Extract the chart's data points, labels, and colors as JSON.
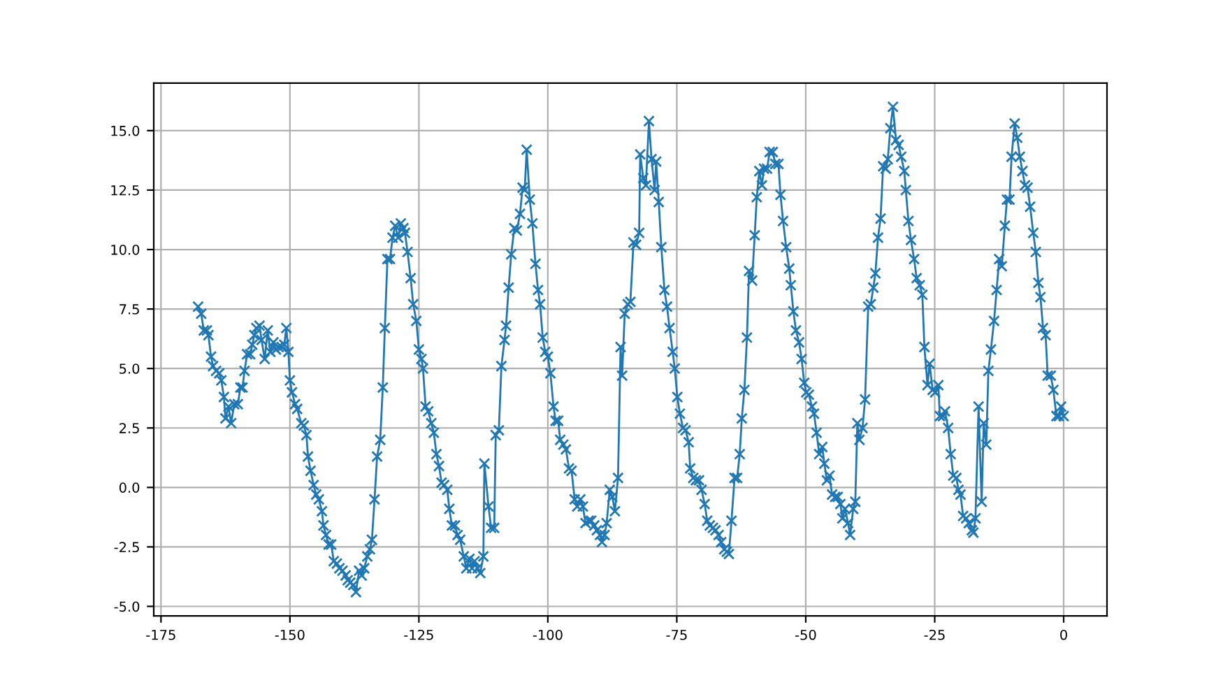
{
  "chart_data": {
    "type": "line",
    "marker": "cross",
    "line_style": "solid",
    "grid": true,
    "xlim": [
      -176.4,
      8.4
    ],
    "ylim": [
      -5.4,
      17.0
    ],
    "xticks": [
      -175,
      -150,
      -125,
      -100,
      -75,
      -50,
      -25,
      0
    ],
    "yticks": [
      {
        "value": -5.0,
        "label": "-5.0"
      },
      {
        "value": -2.5,
        "label": "-2.5"
      },
      {
        "value": 0.0,
        "label": "0.0"
      },
      {
        "value": 2.5,
        "label": "2.5"
      },
      {
        "value": 5.0,
        "label": "5.0"
      },
      {
        "value": 7.5,
        "label": "7.5"
      },
      {
        "value": 10.0,
        "label": "10.0"
      },
      {
        "value": 12.5,
        "label": "12.5"
      },
      {
        "value": 15.0,
        "label": "15.0"
      }
    ],
    "series": [
      {
        "color": "#1f77b4",
        "x": [
          -167.8,
          -167.2,
          -166.7,
          -166.1,
          -165.8,
          -165.3,
          -164.9,
          -164.3,
          -163.7,
          -163.3,
          -162.8,
          -162.5,
          -161.9,
          -161.4,
          -160.8,
          -160.1,
          -159.6,
          -159.2,
          -158.8,
          -158.3,
          -157.7,
          -157.3,
          -156.9,
          -156.5,
          -155.9,
          -155.5,
          -154.9,
          -154.3,
          -153.8,
          -153.2,
          -152.7,
          -152.2,
          -151.6,
          -151.1,
          -150.7,
          -150.3,
          -150.0,
          -149.6,
          -149.0,
          -148.6,
          -147.8,
          -147.3,
          -146.8,
          -146.5,
          -146.0,
          -145.4,
          -144.9,
          -144.4,
          -143.8,
          -143.5,
          -143.0,
          -142.5,
          -142.0,
          -141.5,
          -140.9,
          -140.4,
          -139.8,
          -139.2,
          -138.8,
          -138.3,
          -137.7,
          -137.2,
          -136.6,
          -136.1,
          -135.6,
          -135.0,
          -134.5,
          -134.1,
          -133.6,
          -133.1,
          -132.5,
          -132.0,
          -131.6,
          -131.1,
          -130.6,
          -130.1,
          -129.6,
          -129.0,
          -128.5,
          -128.0,
          -127.7,
          -127.2,
          -126.6,
          -126.1,
          -125.5,
          -125.0,
          -124.5,
          -124.2,
          -123.7,
          -123.2,
          -122.6,
          -122.1,
          -121.6,
          -121.1,
          -120.6,
          -120.1,
          -119.5,
          -119.1,
          -118.6,
          -118.0,
          -117.5,
          -117.0,
          -116.3,
          -115.8,
          -115.2,
          -114.7,
          -114.2,
          -113.6,
          -113.1,
          -112.5,
          -112.3,
          -111.5,
          -111.0,
          -110.4,
          -110.1,
          -109.5,
          -109.0,
          -108.4,
          -108.1,
          -107.6,
          -107.1,
          -106.5,
          -106.0,
          -105.4,
          -104.9,
          -104.5,
          -104.1,
          -103.5,
          -103.0,
          -102.4,
          -101.9,
          -101.5,
          -101.0,
          -100.5,
          -100.0,
          -99.5,
          -98.9,
          -98.5,
          -98.0,
          -97.6,
          -97.0,
          -96.5,
          -95.9,
          -95.4,
          -94.8,
          -94.3,
          -93.7,
          -93.2,
          -92.7,
          -92.1,
          -91.6,
          -91.0,
          -90.5,
          -89.9,
          -89.5,
          -89.0,
          -88.6,
          -88.0,
          -87.5,
          -87.0,
          -86.4,
          -85.9,
          -85.6,
          -85.1,
          -84.5,
          -84.0,
          -83.4,
          -82.9,
          -82.3,
          -82.1,
          -81.5,
          -81.0,
          -80.4,
          -79.9,
          -79.3,
          -79.0,
          -78.5,
          -78.0,
          -77.4,
          -76.9,
          -76.4,
          -75.8,
          -75.4,
          -74.9,
          -74.4,
          -73.8,
          -73.3,
          -72.7,
          -72.4,
          -71.8,
          -71.3,
          -70.7,
          -70.2,
          -69.6,
          -69.1,
          -68.6,
          -68.0,
          -67.5,
          -66.9,
          -66.4,
          -65.8,
          -65.3,
          -64.9,
          -64.4,
          -63.8,
          -63.3,
          -62.8,
          -62.4,
          -61.9,
          -61.4,
          -61.0,
          -60.4,
          -59.9,
          -59.5,
          -59.0,
          -58.5,
          -58.1,
          -57.5,
          -57.0,
          -56.4,
          -55.9,
          -55.3,
          -54.9,
          -54.4,
          -53.8,
          -53.2,
          -52.9,
          -52.4,
          -51.9,
          -51.3,
          -50.8,
          -50.3,
          -49.9,
          -49.4,
          -48.8,
          -48.4,
          -47.9,
          -47.4,
          -46.8,
          -46.4,
          -45.9,
          -45.4,
          -44.9,
          -44.3,
          -43.8,
          -43.3,
          -42.9,
          -42.4,
          -41.8,
          -41.4,
          -40.8,
          -40.4,
          -40.0,
          -39.6,
          -39.0,
          -38.5,
          -37.9,
          -37.4,
          -36.9,
          -36.5,
          -36.0,
          -35.5,
          -35.0,
          -34.5,
          -34.1,
          -33.6,
          -33.1,
          -32.5,
          -32.0,
          -31.5,
          -30.9,
          -30.6,
          -30.1,
          -29.6,
          -29.0,
          -28.5,
          -27.9,
          -27.4,
          -27.0,
          -26.4,
          -26.0,
          -25.4,
          -24.9,
          -24.3,
          -24.0,
          -23.4,
          -23.0,
          -22.4,
          -21.9,
          -21.4,
          -20.8,
          -20.4,
          -20.0,
          -19.5,
          -18.9,
          -18.4,
          -17.8,
          -17.5,
          -17.1,
          -16.5,
          -15.9,
          -15.5,
          -15.0,
          -14.6,
          -14.1,
          -13.5,
          -13.0,
          -12.5,
          -12.0,
          -11.4,
          -11.0,
          -10.5,
          -10.1,
          -9.5,
          -9.0,
          -8.5,
          -8.0,
          -7.5,
          -7.0,
          -6.5,
          -5.9,
          -5.4,
          -4.9,
          -4.5,
          -4.0,
          -3.5,
          -3.1,
          -2.5,
          -2.0,
          -1.4,
          -0.9,
          -0.5,
          0.0
        ],
        "values": [
          7.6,
          7.3,
          6.6,
          6.6,
          6.4,
          5.5,
          5.1,
          4.9,
          4.8,
          4.5,
          3.8,
          2.9,
          3.4,
          2.7,
          3.5,
          3.5,
          4.2,
          4.2,
          4.9,
          5.6,
          5.6,
          6.0,
          6.4,
          6.7,
          6.8,
          6.2,
          5.4,
          6.6,
          5.7,
          6.1,
          5.8,
          5.9,
          5.9,
          6.0,
          6.7,
          5.7,
          4.5,
          4.0,
          3.5,
          3.3,
          2.7,
          2.6,
          2.2,
          1.3,
          0.7,
          0.1,
          -0.3,
          -0.5,
          -1.0,
          -1.6,
          -2.0,
          -2.4,
          -2.4,
          -3.1,
          -3.2,
          -3.4,
          -3.5,
          -3.7,
          -3.9,
          -4.0,
          -4.1,
          -4.4,
          -3.5,
          -3.7,
          -3.4,
          -2.9,
          -2.6,
          -2.2,
          -0.5,
          1.3,
          2.0,
          4.2,
          6.7,
          9.6,
          9.6,
          10.5,
          11.0,
          10.5,
          11.1,
          10.9,
          10.7,
          9.9,
          8.8,
          7.7,
          7.0,
          5.8,
          5.4,
          5.0,
          3.4,
          3.2,
          2.7,
          2.3,
          1.4,
          0.9,
          0.2,
          0.1,
          -0.1,
          -0.9,
          -1.6,
          -1.6,
          -2.0,
          -2.2,
          -2.9,
          -3.4,
          -3.0,
          -3.4,
          -3.1,
          -3.4,
          -3.6,
          -2.9,
          1.0,
          -0.8,
          -1.7,
          -1.7,
          2.2,
          2.4,
          5.1,
          6.2,
          6.8,
          8.4,
          9.8,
          10.9,
          10.8,
          11.5,
          12.6,
          12.5,
          14.2,
          12.1,
          11.1,
          9.4,
          8.3,
          7.7,
          6.3,
          5.7,
          5.5,
          4.8,
          3.4,
          2.8,
          2.8,
          2.0,
          1.8,
          1.6,
          0.8,
          0.7,
          -0.5,
          -0.8,
          -0.5,
          -0.8,
          -1.5,
          -1.4,
          -1.4,
          -1.6,
          -1.8,
          -2.0,
          -2.3,
          -2.0,
          -1.5,
          -0.1,
          -0.4,
          -1.0,
          0.4,
          5.9,
          4.7,
          7.3,
          7.7,
          7.8,
          10.3,
          10.2,
          10.7,
          14.0,
          13.0,
          12.7,
          15.4,
          13.8,
          12.5,
          13.7,
          12.0,
          10.1,
          8.3,
          7.6,
          6.7,
          5.7,
          5.0,
          3.8,
          3.1,
          2.5,
          2.4,
          1.9,
          0.8,
          0.4,
          0.3,
          0.3,
          -0.1,
          -0.7,
          -1.4,
          -1.6,
          -1.7,
          -1.8,
          -2.0,
          -2.3,
          -2.6,
          -2.7,
          -2.8,
          -1.4,
          0.4,
          0.4,
          1.4,
          2.9,
          4.1,
          6.3,
          9.1,
          8.7,
          10.6,
          12.2,
          13.3,
          12.7,
          13.4,
          13.4,
          14.1,
          14.1,
          13.6,
          13.6,
          12.3,
          11.2,
          10.1,
          9.2,
          8.5,
          7.4,
          6.6,
          6.1,
          5.4,
          4.4,
          4.0,
          3.9,
          3.4,
          3.1,
          2.3,
          1.4,
          1.7,
          1.0,
          0.3,
          0.5,
          -0.3,
          -0.4,
          -0.4,
          -0.7,
          -1.3,
          -0.9,
          -1.5,
          -2.0,
          -0.9,
          -0.6,
          2.7,
          2.0,
          2.5,
          3.7,
          7.6,
          7.7,
          8.4,
          9.0,
          10.5,
          11.3,
          13.5,
          13.4,
          13.8,
          15.1,
          16.0,
          14.6,
          14.4,
          13.9,
          13.3,
          12.5,
          11.2,
          10.4,
          9.6,
          8.8,
          8.5,
          8.1,
          5.9,
          4.3,
          5.2,
          4.1,
          4.0,
          4.3,
          3.0,
          3.0,
          3.2,
          2.5,
          1.4,
          0.5,
          0.4,
          -0.1,
          -0.3,
          -1.2,
          -1.3,
          -1.5,
          -1.8,
          -1.9,
          -1.3,
          3.4,
          -0.6,
          2.7,
          1.8,
          4.9,
          5.8,
          7.0,
          8.3,
          9.6,
          9.3,
          11.0,
          12.1,
          12.1,
          13.9,
          15.3,
          14.7,
          13.9,
          13.3,
          12.7,
          12.6,
          11.8,
          10.7,
          9.9,
          8.6,
          8.0,
          6.7,
          6.4,
          4.7,
          4.7,
          4.1,
          3.0,
          3.0,
          3.4,
          3.0
        ]
      }
    ]
  }
}
